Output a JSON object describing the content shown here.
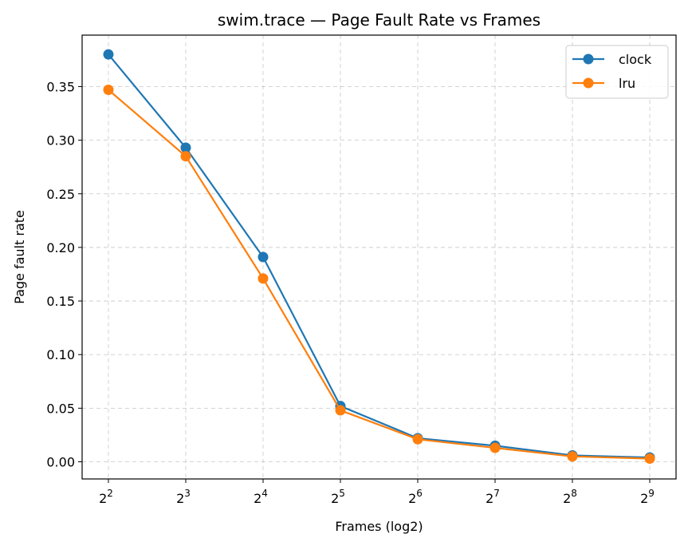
{
  "chart_data": {
    "type": "line",
    "title": "swim.trace — Page Fault Rate vs Frames",
    "xlabel": "Frames (log2)",
    "ylabel": "Page fault rate",
    "x_scale": "log2",
    "x_ticks": [
      {
        "base": "2",
        "exp": "2",
        "value": 4
      },
      {
        "base": "2",
        "exp": "3",
        "value": 8
      },
      {
        "base": "2",
        "exp": "4",
        "value": 16
      },
      {
        "base": "2",
        "exp": "5",
        "value": 32
      },
      {
        "base": "2",
        "exp": "6",
        "value": 64
      },
      {
        "base": "2",
        "exp": "7",
        "value": 128
      },
      {
        "base": "2",
        "exp": "8",
        "value": 256
      },
      {
        "base": "2",
        "exp": "9",
        "value": 512
      }
    ],
    "y_ticks": [
      "0.00",
      "0.05",
      "0.10",
      "0.15",
      "0.20",
      "0.25",
      "0.30",
      "0.35"
    ],
    "ylim": [
      -0.016,
      0.398
    ],
    "grid": true,
    "legend_position": "top-right",
    "x": [
      4,
      8,
      16,
      32,
      64,
      128,
      256,
      512
    ],
    "series": [
      {
        "name": "clock",
        "color": "#1f77b4",
        "values": [
          0.38,
          0.293,
          0.191,
          0.052,
          0.022,
          0.015,
          0.006,
          0.004
        ]
      },
      {
        "name": "lru",
        "color": "#ff7f0e",
        "values": [
          0.347,
          0.285,
          0.171,
          0.048,
          0.021,
          0.013,
          0.005,
          0.003
        ]
      }
    ]
  }
}
